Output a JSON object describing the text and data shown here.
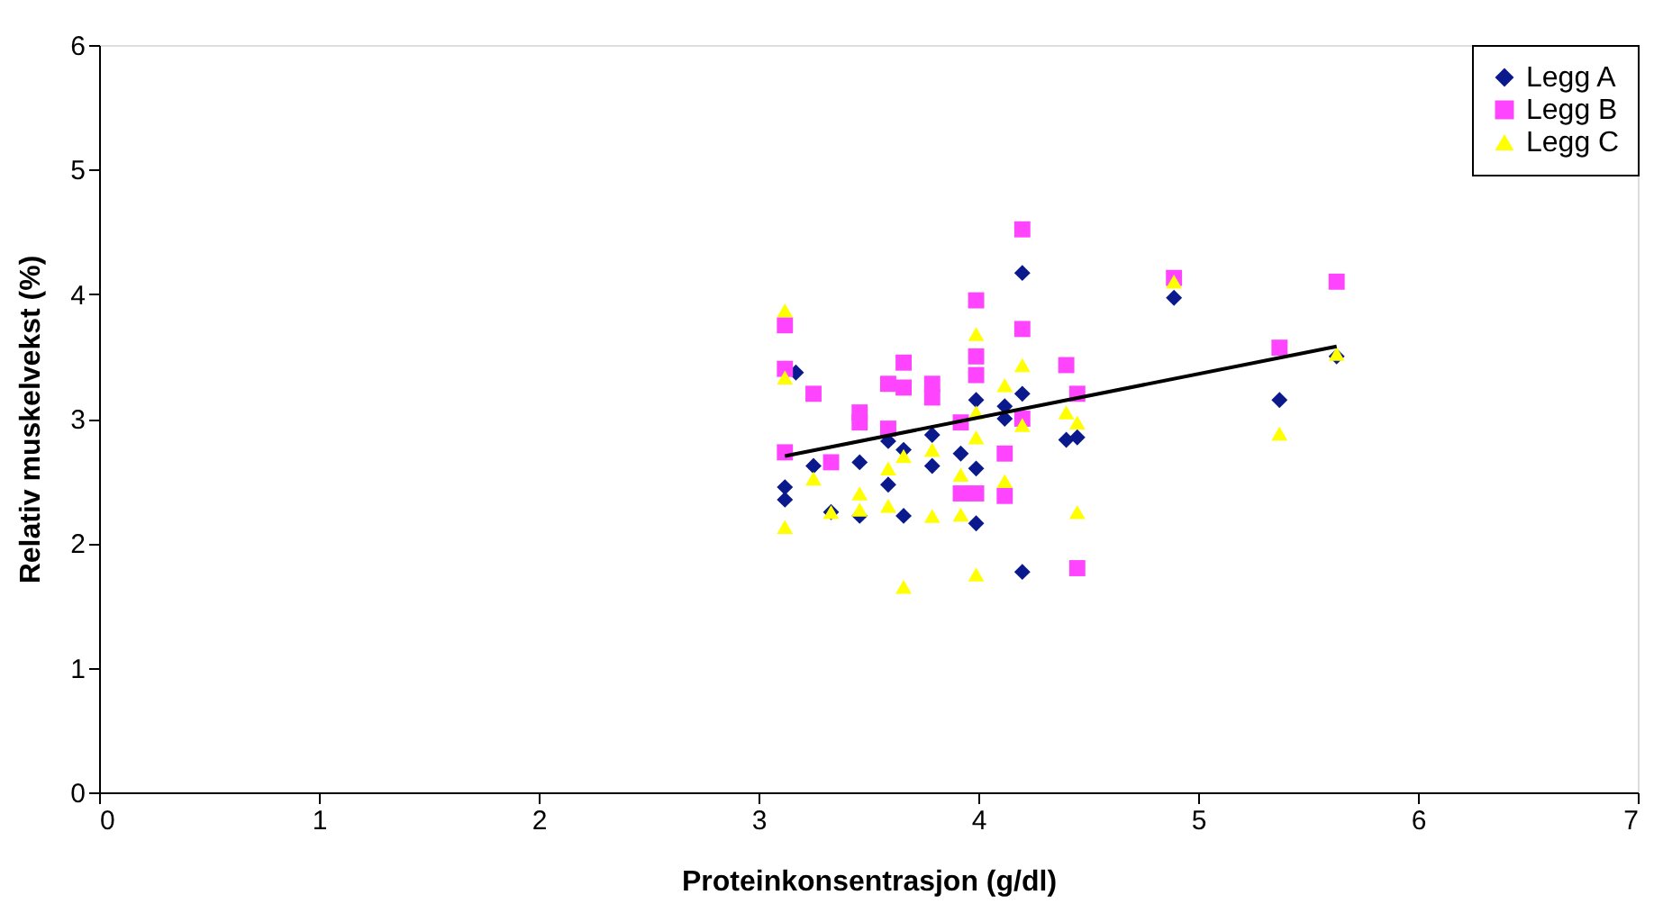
{
  "chart_data": {
    "type": "scatter",
    "xlabel": "Proteinkonsentrasjon (g/dl)",
    "ylabel": "Relativ muskelvekst (%)",
    "xlim": [
      0,
      7
    ],
    "xticks": [
      0,
      1,
      2,
      3,
      4,
      5,
      6,
      7
    ],
    "ylim": [
      0,
      6
    ],
    "yticks": [
      0,
      1,
      2,
      3,
      4,
      5,
      6
    ],
    "grid": false,
    "legend": "top right",
    "series": [
      {
        "name": "Legg A",
        "color": "#0a1a8c",
        "marker": "diamond",
        "x": [
          3.12,
          3.12,
          3.17,
          3.25,
          3.33,
          3.46,
          3.46,
          3.59,
          3.59,
          3.66,
          3.66,
          3.79,
          3.79,
          3.92,
          3.99,
          3.99,
          3.99,
          4.12,
          4.12,
          4.2,
          4.2,
          4.2,
          4.4,
          4.45,
          4.89,
          5.37,
          5.63
        ],
        "values": [
          2.45,
          2.35,
          3.37,
          2.62,
          2.25,
          2.65,
          2.22,
          2.82,
          2.47,
          2.75,
          2.22,
          2.87,
          2.62,
          2.72,
          2.16,
          2.6,
          3.15,
          3.1,
          3.0,
          4.17,
          1.77,
          3.2,
          2.83,
          2.85,
          3.97,
          3.15,
          3.5
        ]
      },
      {
        "name": "Legg B",
        "color": "#ff44ff",
        "marker": "square",
        "x": [
          3.12,
          3.12,
          3.12,
          3.25,
          3.33,
          3.46,
          3.46,
          3.59,
          3.59,
          3.66,
          3.66,
          3.79,
          3.79,
          3.92,
          3.92,
          3.99,
          3.99,
          3.99,
          3.99,
          4.12,
          4.12,
          4.2,
          4.2,
          4.2,
          4.4,
          4.45,
          4.45,
          4.89,
          5.37,
          5.63
        ],
        "values": [
          3.75,
          3.4,
          2.73,
          3.2,
          2.65,
          3.05,
          2.97,
          3.28,
          2.92,
          3.45,
          3.25,
          3.28,
          3.17,
          2.97,
          2.4,
          3.95,
          3.5,
          3.35,
          2.4,
          2.72,
          2.38,
          4.52,
          3.72,
          3.0,
          3.43,
          3.2,
          1.8,
          4.13,
          3.57,
          4.1
        ]
      },
      {
        "name": "Legg C",
        "color": "#ffff00",
        "marker": "triangle",
        "x": [
          3.12,
          3.12,
          3.12,
          3.25,
          3.33,
          3.46,
          3.46,
          3.59,
          3.59,
          3.66,
          3.66,
          3.79,
          3.79,
          3.92,
          3.92,
          3.99,
          3.99,
          3.99,
          3.99,
          4.12,
          4.12,
          4.2,
          4.2,
          4.4,
          4.45,
          4.45,
          4.89,
          5.37,
          5.63
        ],
        "values": [
          3.87,
          3.33,
          2.13,
          2.52,
          2.25,
          2.4,
          2.27,
          2.3,
          2.6,
          2.7,
          1.65,
          2.75,
          2.22,
          2.23,
          2.55,
          3.68,
          3.05,
          2.85,
          1.75,
          3.27,
          2.5,
          3.43,
          2.95,
          3.05,
          2.25,
          2.97,
          4.1,
          2.88,
          3.52
        ]
      },
      {
        "type": "line",
        "color": "#000000",
        "marker": "none",
        "x": [
          3.12,
          5.63
        ],
        "values": [
          2.7,
          3.58
        ]
      }
    ]
  }
}
